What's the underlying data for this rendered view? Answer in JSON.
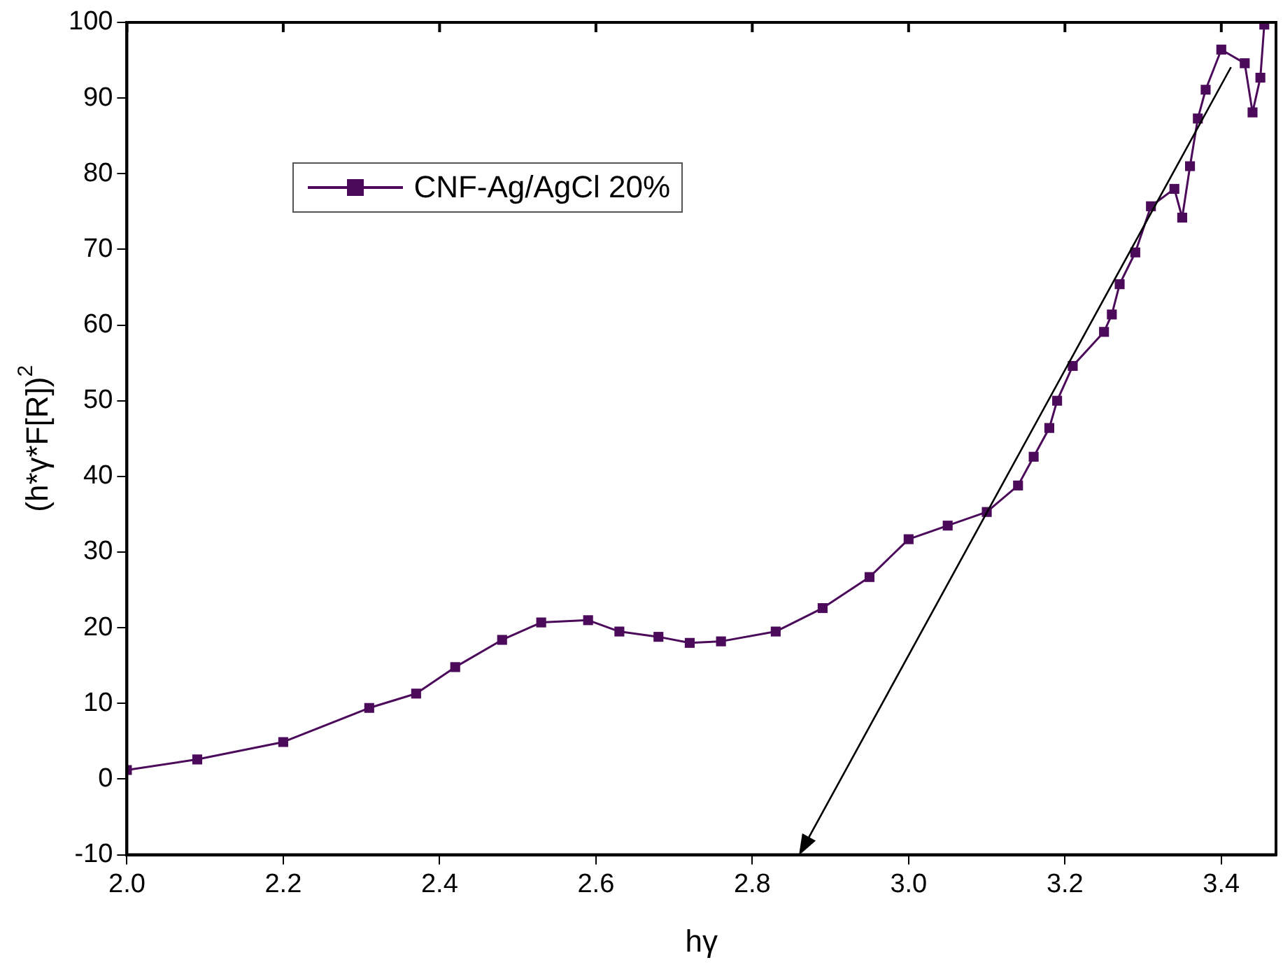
{
  "chart_data": {
    "type": "line",
    "xlabel": "hγ",
    "ylabel": "(h*γ*F[R])$^{2}$",
    "xlim": [
      2.0,
      3.47
    ],
    "ylim": [
      -10,
      100
    ],
    "xticks": [
      {
        "value": 2.0,
        "label": "2.0"
      },
      {
        "value": 2.2,
        "label": "2.2"
      },
      {
        "value": 2.4,
        "label": "2.4"
      },
      {
        "value": 2.6,
        "label": "2.6"
      },
      {
        "value": 2.8,
        "label": "2.8"
      },
      {
        "value": 3.0,
        "label": "3.0"
      },
      {
        "value": 3.2,
        "label": "3.2"
      },
      {
        "value": 3.4,
        "label": "3.4"
      }
    ],
    "yticks": [
      -10,
      0,
      10,
      20,
      30,
      40,
      50,
      60,
      70,
      80,
      90,
      100
    ],
    "grid": false,
    "legend": "top left",
    "marker": "square",
    "line_style": "solid",
    "series": [
      {
        "name": "CNF-Ag/AgCl 20%",
        "color": "#4b0a5a",
        "x": [
          2.0,
          2.09,
          2.2,
          2.31,
          2.37,
          2.42,
          2.48,
          2.53,
          2.59,
          2.63,
          2.68,
          2.72,
          2.76,
          2.83,
          2.89,
          2.95,
          3.0,
          3.05,
          3.1,
          3.14,
          3.16,
          3.18,
          3.19,
          3.21,
          3.25,
          3.26,
          3.27,
          3.29,
          3.31,
          3.34,
          3.35,
          3.36,
          3.37,
          3.38,
          3.4,
          3.43,
          3.44,
          3.45,
          3.455
        ],
        "values": [
          1.2,
          2.6,
          4.9,
          9.4,
          11.3,
          14.8,
          18.4,
          20.7,
          21,
          19.5,
          18.8,
          18,
          18.2,
          19.5,
          22.6,
          26.7,
          31.7,
          33.5,
          35.3,
          38.8,
          42.6,
          46.4,
          50,
          54.6,
          59.1,
          61.4,
          65.4,
          69.6,
          75.7,
          78,
          74.2,
          81,
          87.3,
          91.1,
          96.4,
          94.6,
          88.1,
          92.7,
          99.7
        ]
      }
    ]
  }
}
